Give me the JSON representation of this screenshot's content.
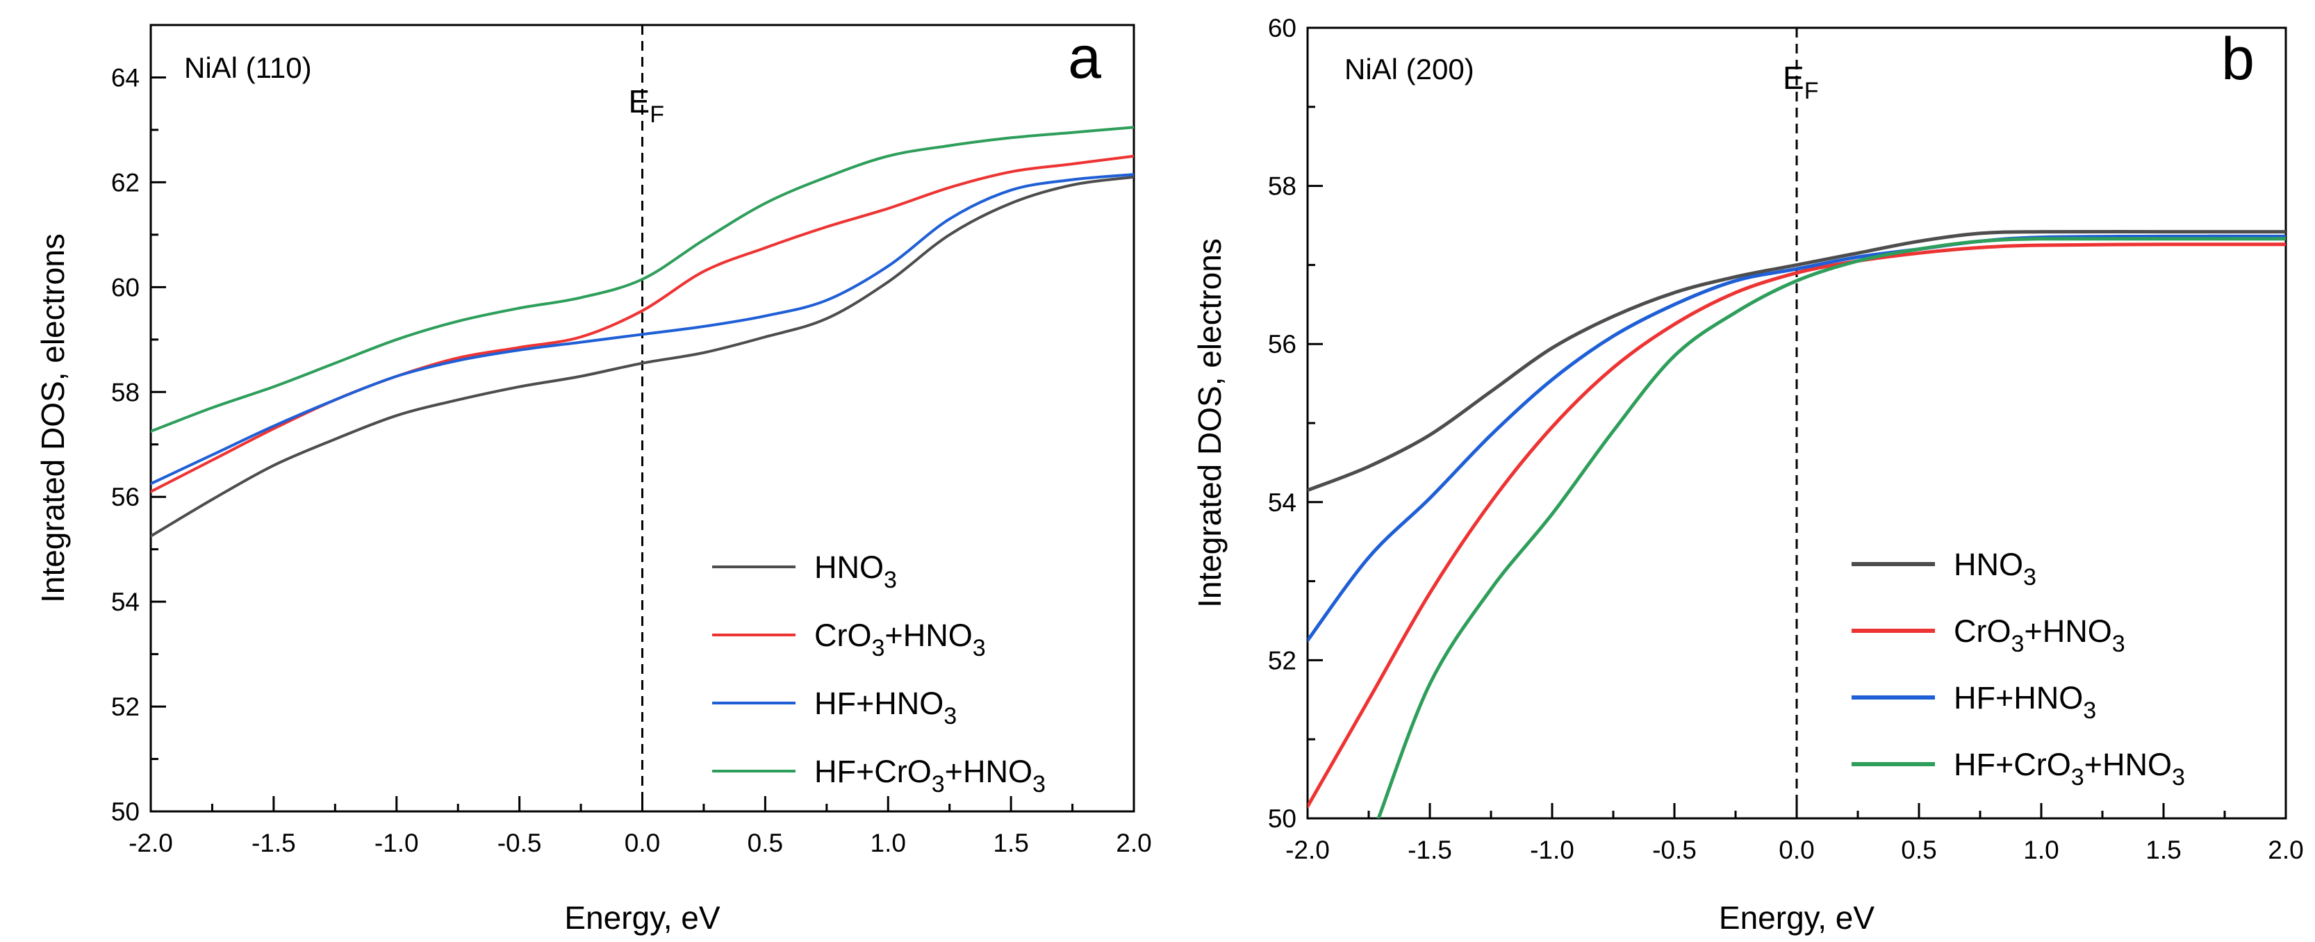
{
  "chart_data": [
    {
      "type": "line",
      "panel_label": "a",
      "title": "NiAl (110)",
      "xlabel": "Energy, eV",
      "ylabel": "Integrated DOS, electrons",
      "xlim": [
        -2.0,
        2.0
      ],
      "ylim": [
        50,
        65
      ],
      "xticks": [
        -2.0,
        -1.5,
        -1.0,
        -0.5,
        0.0,
        0.5,
        1.0,
        1.5,
        2.0
      ],
      "xtick_labels": [
        "-2.0",
        "-1.5",
        "-1.0",
        "-0.5",
        "0.0",
        "0.5",
        "1.0",
        "1.5",
        "2.0"
      ],
      "yticks": [
        50,
        52,
        54,
        56,
        58,
        60,
        62,
        64
      ],
      "ytick_labels": [
        "50",
        "52",
        "54",
        "56",
        "58",
        "60",
        "62",
        "64"
      ],
      "fermi": {
        "x": 0.0,
        "label": "E",
        "subscript": "F"
      },
      "legend_position": "bottom-right",
      "x": [
        -2.0,
        -1.75,
        -1.5,
        -1.25,
        -1.0,
        -0.75,
        -0.5,
        -0.25,
        0.0,
        0.25,
        0.5,
        0.75,
        1.0,
        1.25,
        1.5,
        1.75,
        2.0
      ],
      "series": [
        {
          "name": "HNO",
          "sub": "3",
          "color": "#4d4d4d",
          "values": [
            55.25,
            55.95,
            56.6,
            57.1,
            57.55,
            57.85,
            58.1,
            58.3,
            58.55,
            58.75,
            59.05,
            59.4,
            60.1,
            61.0,
            61.6,
            61.95,
            62.1
          ]
        },
        {
          "name": "CrO",
          "sub": "3",
          "name2": "+HNO",
          "sub2": "3",
          "color": "#ee3333",
          "values": [
            56.1,
            56.7,
            57.3,
            57.85,
            58.3,
            58.65,
            58.85,
            59.05,
            59.55,
            60.3,
            60.75,
            61.15,
            61.5,
            61.9,
            62.2,
            62.35,
            62.5
          ]
        },
        {
          "name": "HF+HNO",
          "sub": "3",
          "color": "#1f5fd6",
          "values": [
            56.25,
            56.8,
            57.35,
            57.85,
            58.3,
            58.6,
            58.8,
            58.95,
            59.1,
            59.25,
            59.45,
            59.75,
            60.4,
            61.3,
            61.85,
            62.05,
            62.15
          ]
        },
        {
          "name": "HF+CrO",
          "sub": "3",
          "name2": "+HNO",
          "sub2": "3",
          "color": "#2e9e5b",
          "values": [
            57.25,
            57.7,
            58.1,
            58.55,
            59.0,
            59.35,
            59.6,
            59.8,
            60.15,
            60.9,
            61.6,
            62.1,
            62.5,
            62.7,
            62.85,
            62.95,
            63.05
          ]
        }
      ]
    },
    {
      "type": "line",
      "panel_label": "b",
      "title": "NiAl (200)",
      "xlabel": "Energy, eV",
      "ylabel": "Integrated DOS, electrons",
      "xlim": [
        -2.0,
        2.0
      ],
      "ylim": [
        50,
        60
      ],
      "xticks": [
        -2.0,
        -1.5,
        -1.0,
        -0.5,
        0.0,
        0.5,
        1.0,
        1.5,
        2.0
      ],
      "xtick_labels": [
        "-2.0",
        "-1.5",
        "-1.0",
        "-0.5",
        "0.0",
        "0.5",
        "1.0",
        "1.5",
        "2.0"
      ],
      "yticks": [
        50,
        52,
        54,
        56,
        58,
        60
      ],
      "ytick_labels": [
        "50",
        "52",
        "54",
        "56",
        "58",
        "60"
      ],
      "fermi": {
        "x": 0.0,
        "label": "E",
        "subscript": "F"
      },
      "legend_position": "bottom-right",
      "series": [
        {
          "name": "HNO",
          "sub": "3",
          "color": "#4d4d4d",
          "x": [
            -2.0,
            -1.75,
            -1.5,
            -1.25,
            -1.0,
            -0.75,
            -0.5,
            -0.25,
            0.0,
            0.25,
            0.5,
            0.75,
            1.0,
            1.5,
            2.0
          ],
          "values": [
            54.15,
            54.45,
            54.85,
            55.4,
            55.95,
            56.35,
            56.65,
            56.85,
            57.0,
            57.15,
            57.3,
            57.4,
            57.42,
            57.42,
            57.42
          ]
        },
        {
          "name": "CrO",
          "sub": "3",
          "name2": "+HNO",
          "sub2": "3",
          "color": "#ee3333",
          "x": [
            -2.0,
            -1.75,
            -1.5,
            -1.25,
            -1.0,
            -0.75,
            -0.5,
            -0.25,
            0.0,
            0.25,
            0.5,
            0.75,
            1.0,
            1.5,
            2.0
          ],
          "values": [
            50.15,
            51.5,
            52.85,
            54.0,
            54.95,
            55.7,
            56.25,
            56.65,
            56.9,
            57.05,
            57.15,
            57.22,
            57.25,
            57.26,
            57.26
          ]
        },
        {
          "name": "HF+HNO",
          "sub": "3",
          "color": "#1f5fd6",
          "x": [
            -2.0,
            -1.75,
            -1.5,
            -1.25,
            -1.0,
            -0.75,
            -0.5,
            -0.25,
            0.0,
            0.25,
            0.5,
            0.75,
            1.0,
            1.5,
            2.0
          ],
          "values": [
            52.25,
            53.3,
            54.05,
            54.85,
            55.55,
            56.1,
            56.5,
            56.8,
            56.95,
            57.1,
            57.2,
            57.3,
            57.35,
            57.36,
            57.36
          ]
        },
        {
          "name": "HF+CrO",
          "sub": "3",
          "name2": "+HNO",
          "sub2": "3",
          "color": "#2e9e5b",
          "x": [
            -1.71,
            -1.5,
            -1.25,
            -1.0,
            -0.75,
            -0.5,
            -0.25,
            0.0,
            0.25,
            0.5,
            0.75,
            1.0,
            1.5,
            2.0
          ],
          "values": [
            50.0,
            51.7,
            52.9,
            53.85,
            54.9,
            55.85,
            56.4,
            56.8,
            57.05,
            57.2,
            57.3,
            57.33,
            57.33,
            57.33
          ]
        }
      ]
    }
  ]
}
